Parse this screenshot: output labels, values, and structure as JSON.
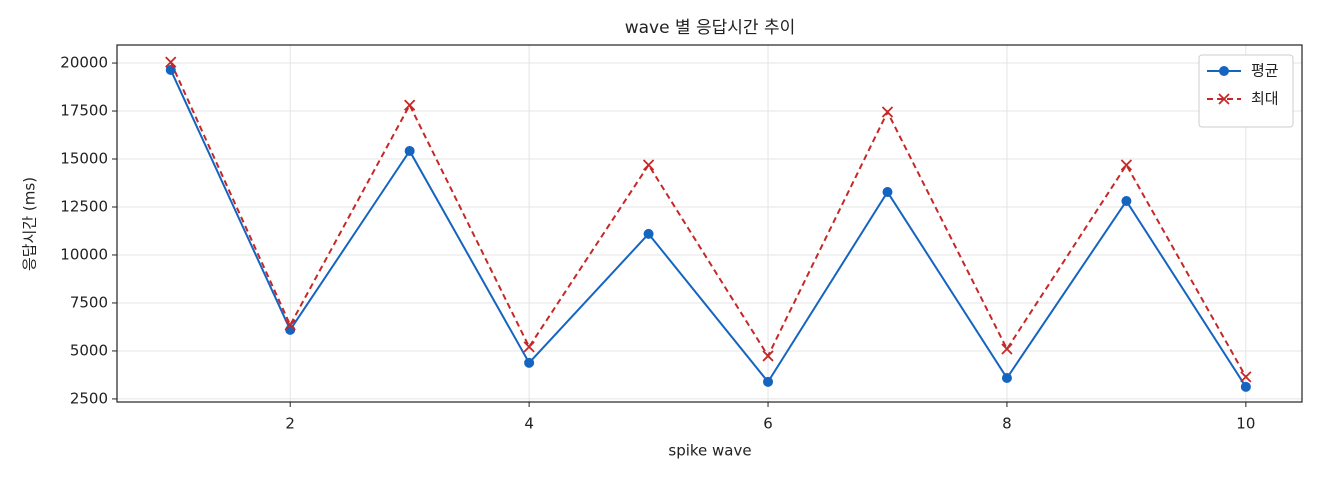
{
  "chart_data": {
    "type": "line",
    "title": "wave 별 응답시간 추이",
    "xlabel": "spike wave",
    "ylabel": "응답시간 (ms)",
    "x": [
      1,
      2,
      3,
      4,
      5,
      6,
      7,
      8,
      9,
      10
    ],
    "series": [
      {
        "name": "평균",
        "color": "#1565c0",
        "marker": "o",
        "linestyle": "solid",
        "values": [
          19640,
          6100,
          15420,
          4380,
          11100,
          3390,
          13280,
          3590,
          12810,
          3130
        ]
      },
      {
        "name": "최대",
        "color": "#c62828",
        "marker": "x",
        "linestyle": "dashed",
        "values": [
          20050,
          6350,
          17810,
          5210,
          14690,
          4740,
          17450,
          5100,
          14690,
          3650
        ]
      }
    ],
    "xlim": [
      0.55,
      10.47
    ],
    "ylim": [
      2340,
      20940
    ],
    "xticks": [
      2,
      4,
      6,
      8,
      10
    ],
    "yticks": [
      2500,
      5000,
      7500,
      10000,
      12500,
      15000,
      17500,
      20000
    ],
    "grid": true,
    "legend": "upper right"
  }
}
